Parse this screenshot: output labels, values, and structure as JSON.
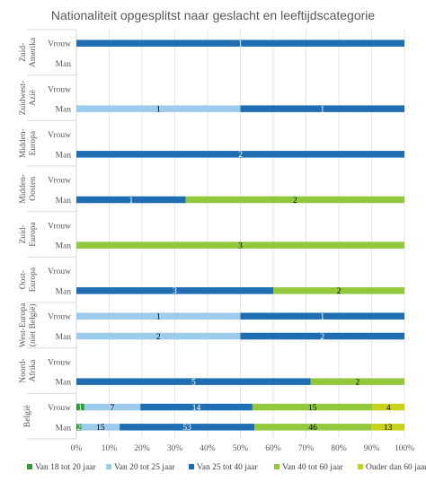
{
  "chart_data": {
    "type": "bar",
    "stacked_percent": true,
    "orientation": "horizontal",
    "title": "Nationaliteit opgesplitst naar geslacht en leeftijdscategorie",
    "xlim": [
      0,
      100
    ],
    "x_ticks": [
      "0%",
      "10%",
      "20%",
      "30%",
      "40%",
      "50%",
      "60%",
      "70%",
      "80%",
      "90%",
      "100%"
    ],
    "legend_position": "bottom",
    "grid": true,
    "series": [
      {
        "name": "Van 18 tot 20 jaar",
        "color": "#2e9b3a"
      },
      {
        "name": "Van 20 tot 25 jaar",
        "color": "#9dcbec"
      },
      {
        "name": "Van 25 tot 40 jaar",
        "color": "#1f6db3"
      },
      {
        "name": "Van 40 tot 60 jaar",
        "color": "#93c83d"
      },
      {
        "name": "Ouder dan 60 jaar",
        "color": "#c8d21a"
      }
    ],
    "groups": [
      {
        "name": "Zuid-Amerika",
        "rows": [
          {
            "label": "Vrouw",
            "values": [
              0,
              0,
              1,
              0,
              0
            ]
          },
          {
            "label": "Man",
            "values": [
              0,
              0,
              0,
              0,
              0
            ]
          }
        ]
      },
      {
        "name": "Zuidwest-Azië",
        "rows": [
          {
            "label": "Vrouw",
            "values": [
              0,
              0,
              0,
              0,
              0
            ]
          },
          {
            "label": "Man",
            "values": [
              0,
              1,
              1,
              0,
              0
            ]
          }
        ]
      },
      {
        "name": "Midden-Europa",
        "rows": [
          {
            "label": "Vrouw",
            "values": [
              0,
              0,
              0,
              0,
              0
            ]
          },
          {
            "label": "Man",
            "values": [
              0,
              0,
              2,
              0,
              0
            ]
          }
        ]
      },
      {
        "name": "Midden-Oosten",
        "rows": [
          {
            "label": "Vrouw",
            "values": [
              0,
              0,
              0,
              0,
              0
            ]
          },
          {
            "label": "Man",
            "values": [
              0,
              0,
              1,
              2,
              0
            ]
          }
        ]
      },
      {
        "name": "Zuid-Europa",
        "rows": [
          {
            "label": "Vrouw",
            "values": [
              0,
              0,
              0,
              0,
              0
            ]
          },
          {
            "label": "Man",
            "values": [
              0,
              0,
              0,
              3,
              0
            ]
          }
        ]
      },
      {
        "name": "Oost-Europa",
        "rows": [
          {
            "label": "Vrouw",
            "values": [
              0,
              0,
              0,
              0,
              0
            ]
          },
          {
            "label": "Man",
            "values": [
              0,
              0,
              3,
              2,
              0
            ]
          }
        ]
      },
      {
        "name": "West-Europa (niet België)",
        "rows": [
          {
            "label": "Vrouw",
            "values": [
              0,
              1,
              1,
              0,
              0
            ]
          },
          {
            "label": "Man",
            "values": [
              0,
              2,
              2,
              0,
              0
            ]
          }
        ]
      },
      {
        "name": "Noord-Afrika",
        "rows": [
          {
            "label": "Vrouw",
            "values": [
              0,
              0,
              0,
              0,
              0
            ]
          },
          {
            "label": "Man",
            "values": [
              0,
              0,
              5,
              2,
              0
            ]
          }
        ]
      },
      {
        "name": "België",
        "rows": [
          {
            "label": "Vrouw",
            "values": [
              1,
              7,
              14,
              15,
              4
            ]
          },
          {
            "label": "Man",
            "values": [
              2,
              15,
              53,
              46,
              13
            ]
          }
        ]
      }
    ]
  }
}
